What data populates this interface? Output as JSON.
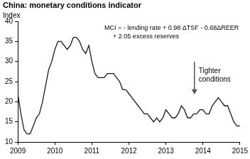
{
  "chart_data": {
    "type": "line",
    "title": "China: monetary conditions indicator",
    "y_label": "Index",
    "annotations": {
      "formula": [
        "MCI = - lending rate + 0.98 ΔTSF - 0.68ΔREER",
        "+ 2.05 excess reserves"
      ],
      "note": [
        "Tighter",
        "conditions"
      ]
    },
    "x": [
      2009,
      2009.083,
      2009.167,
      2009.25,
      2009.333,
      2009.417,
      2009.5,
      2009.583,
      2009.667,
      2009.75,
      2009.833,
      2009.917,
      2010,
      2010.083,
      2010.167,
      2010.25,
      2010.333,
      2010.417,
      2010.5,
      2010.583,
      2010.667,
      2010.75,
      2010.833,
      2010.917,
      2011,
      2011.083,
      2011.167,
      2011.25,
      2011.333,
      2011.417,
      2011.5,
      2011.583,
      2011.667,
      2011.75,
      2011.833,
      2011.917,
      2012,
      2012.083,
      2012.167,
      2012.25,
      2012.333,
      2012.417,
      2012.5,
      2012.583,
      2012.667,
      2012.75,
      2012.833,
      2012.917,
      2013,
      2013.083,
      2013.167,
      2013.25,
      2013.333,
      2013.417,
      2013.5,
      2013.583,
      2013.667,
      2013.75,
      2013.833,
      2013.917,
      2014,
      2014.083,
      2014.167,
      2014.25,
      2014.333,
      2014.417,
      2014.5,
      2014.583,
      2014.667,
      2014.75,
      2014.833,
      2014.917,
      2015
    ],
    "values": [
      22,
      17,
      13,
      12,
      12,
      14,
      16,
      17,
      20,
      24,
      28,
      30,
      33,
      35,
      35,
      34,
      33,
      34,
      36,
      36,
      35,
      33,
      32,
      34,
      30,
      27,
      26,
      26,
      26,
      27,
      27,
      27,
      26,
      25,
      23,
      23,
      22,
      21,
      20,
      19,
      18,
      17,
      17,
      16,
      15,
      16,
      15,
      16,
      18,
      17,
      16,
      16,
      17,
      19,
      18,
      16,
      16,
      17,
      17,
      18,
      18,
      17,
      17,
      19,
      20,
      21,
      20,
      19,
      19,
      17,
      15,
      14,
      14
    ],
    "color": "#1a1a1a",
    "xlim": [
      2009,
      2015
    ],
    "xticks": [
      2009,
      2010,
      2011,
      2012,
      2013,
      2014,
      2015
    ],
    "ylim": [
      10,
      40
    ],
    "yticks": [
      10,
      15,
      20,
      25,
      30,
      35,
      40
    ],
    "grid": false
  }
}
